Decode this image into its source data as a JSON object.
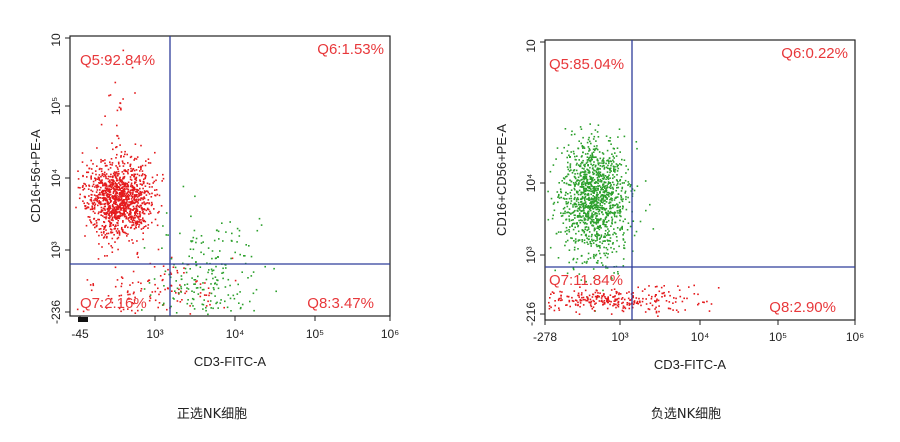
{
  "colors": {
    "axis": "#222222",
    "gate_line": "#2e3d9a",
    "quadrant_label": "#e8383b",
    "red_population": "#e41a1c",
    "green_population": "#2ca02c"
  },
  "chart_data": [
    {
      "type": "scatter",
      "caption": "正选NK细胞",
      "xlabel": "CD3-FITC-A",
      "ylabel": "CD16+56+PE-A",
      "x_ticks": [
        "-45",
        "10³",
        "10⁴",
        "10⁵",
        "10⁶"
      ],
      "y_ticks": [
        "-236",
        "10³",
        "10⁴",
        "10⁵",
        "10"
      ],
      "gate": {
        "x": 1500,
        "y": 800
      },
      "quadrants": [
        {
          "name": "Q5",
          "label": "Q5:92.84%",
          "value": 92.84,
          "position": "top-left"
        },
        {
          "name": "Q6",
          "label": "Q6:1.53%",
          "value": 1.53,
          "position": "top-right"
        },
        {
          "name": "Q7",
          "label": "Q7:2.16%",
          "value": 2.16,
          "position": "bottom-left"
        },
        {
          "name": "Q8",
          "label": "Q8:3.47%",
          "value": 3.47,
          "position": "bottom-right"
        }
      ],
      "populations": [
        {
          "color": "red",
          "center": [
            400,
            6000
          ],
          "count": 1400
        },
        {
          "color": "green",
          "center": [
            4000,
            1000
          ],
          "count": 230
        }
      ]
    },
    {
      "type": "scatter",
      "caption": "负选NK细胞",
      "xlabel": "CD3-FITC-A",
      "ylabel": "CD16+CD56+PE-A",
      "x_ticks": [
        "-278",
        "10³",
        "10⁴",
        "10⁵",
        "10⁶"
      ],
      "y_ticks": [
        "-216",
        "10³",
        "10⁴",
        "10"
      ],
      "gate": {
        "x": 1500,
        "y": 800
      },
      "quadrants": [
        {
          "name": "Q5",
          "label": "Q5:85.04%",
          "value": 85.04,
          "position": "top-left"
        },
        {
          "name": "Q6",
          "label": "Q6:0.22%",
          "value": 0.22,
          "position": "top-right"
        },
        {
          "name": "Q7",
          "label": "Q7:11.84%",
          "value": 11.84,
          "position": "bottom-left"
        },
        {
          "name": "Q8",
          "label": "Q8:2.90%",
          "value": 2.9,
          "position": "bottom-right"
        }
      ],
      "populations": [
        {
          "color": "green",
          "center": [
            350,
            8000
          ],
          "count": 1300
        },
        {
          "color": "red",
          "center": [
            500,
            50
          ],
          "count": 300
        }
      ]
    }
  ]
}
